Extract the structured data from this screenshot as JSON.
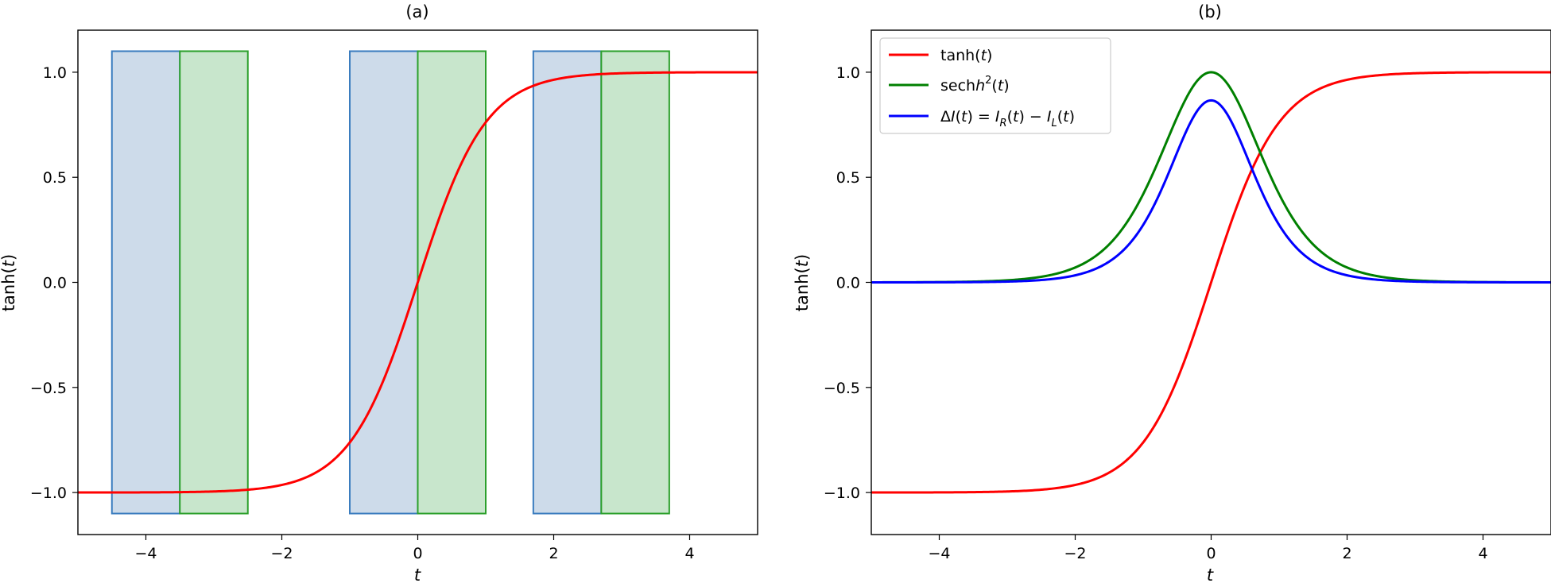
{
  "chart_data": [
    {
      "type": "line",
      "title": "(a)",
      "xlabel": "t",
      "ylabel": "tanh(t)",
      "xlim": [
        -5,
        5
      ],
      "ylim": [
        -1.2,
        1.2
      ],
      "xticks": [
        -4,
        -2,
        0,
        2,
        4
      ],
      "xtick_labels": [
        "−4",
        "−2",
        "0",
        "2",
        "4"
      ],
      "yticks": [
        -1.0,
        -0.5,
        0.0,
        0.5,
        1.0
      ],
      "ytick_labels": [
        "−1.0",
        "−0.5",
        "0.0",
        "0.5",
        "1.0"
      ],
      "grid": false,
      "series": [
        {
          "function": "tanh",
          "color": "#ff0000",
          "samples": 401
        }
      ],
      "rectangles": [
        {
          "x0": -4.5,
          "x1": -3.5,
          "y0": -1.1,
          "y1": 1.1,
          "fill": "#cddbea",
          "stroke": "#3b7dbf"
        },
        {
          "x0": -3.5,
          "x1": -2.5,
          "y0": -1.1,
          "y1": 1.1,
          "fill": "#c8e6cc",
          "stroke": "#2ca02c"
        },
        {
          "x0": -1.0,
          "x1": 0.0,
          "y0": -1.1,
          "y1": 1.1,
          "fill": "#cddbea",
          "stroke": "#3b7dbf"
        },
        {
          "x0": 0.0,
          "x1": 1.0,
          "y0": -1.1,
          "y1": 1.1,
          "fill": "#c8e6cc",
          "stroke": "#2ca02c"
        },
        {
          "x0": 1.7,
          "x1": 2.7,
          "y0": -1.1,
          "y1": 1.1,
          "fill": "#cddbea",
          "stroke": "#3b7dbf"
        },
        {
          "x0": 2.7,
          "x1": 3.7,
          "y0": -1.1,
          "y1": 1.1,
          "fill": "#c8e6cc",
          "stroke": "#2ca02c"
        }
      ]
    },
    {
      "type": "line",
      "title": "(b)",
      "xlabel": "t",
      "ylabel": "tanh(t)",
      "xlim": [
        -5,
        5
      ],
      "ylim": [
        -1.2,
        1.2
      ],
      "xticks": [
        -4,
        -2,
        0,
        2,
        4
      ],
      "xtick_labels": [
        "−4",
        "−2",
        "0",
        "2",
        "4"
      ],
      "yticks": [
        -1.0,
        -0.5,
        0.0,
        0.5,
        1.0
      ],
      "ytick_labels": [
        "−1.0",
        "−0.5",
        "0.0",
        "0.5",
        "1.0"
      ],
      "grid": false,
      "legend_position": "top-left",
      "series": [
        {
          "name": "tanh(t)",
          "function": "tanh",
          "color": "#ff0000",
          "samples": 401
        },
        {
          "name": "sech²(t)",
          "function": "sech2",
          "color": "#008000",
          "samples": 401
        },
        {
          "name": "ΔI(t) = I_R(t) − I_L(t)",
          "function": "deltaI",
          "color": "#0000ff",
          "samples": 401
        }
      ]
    }
  ]
}
